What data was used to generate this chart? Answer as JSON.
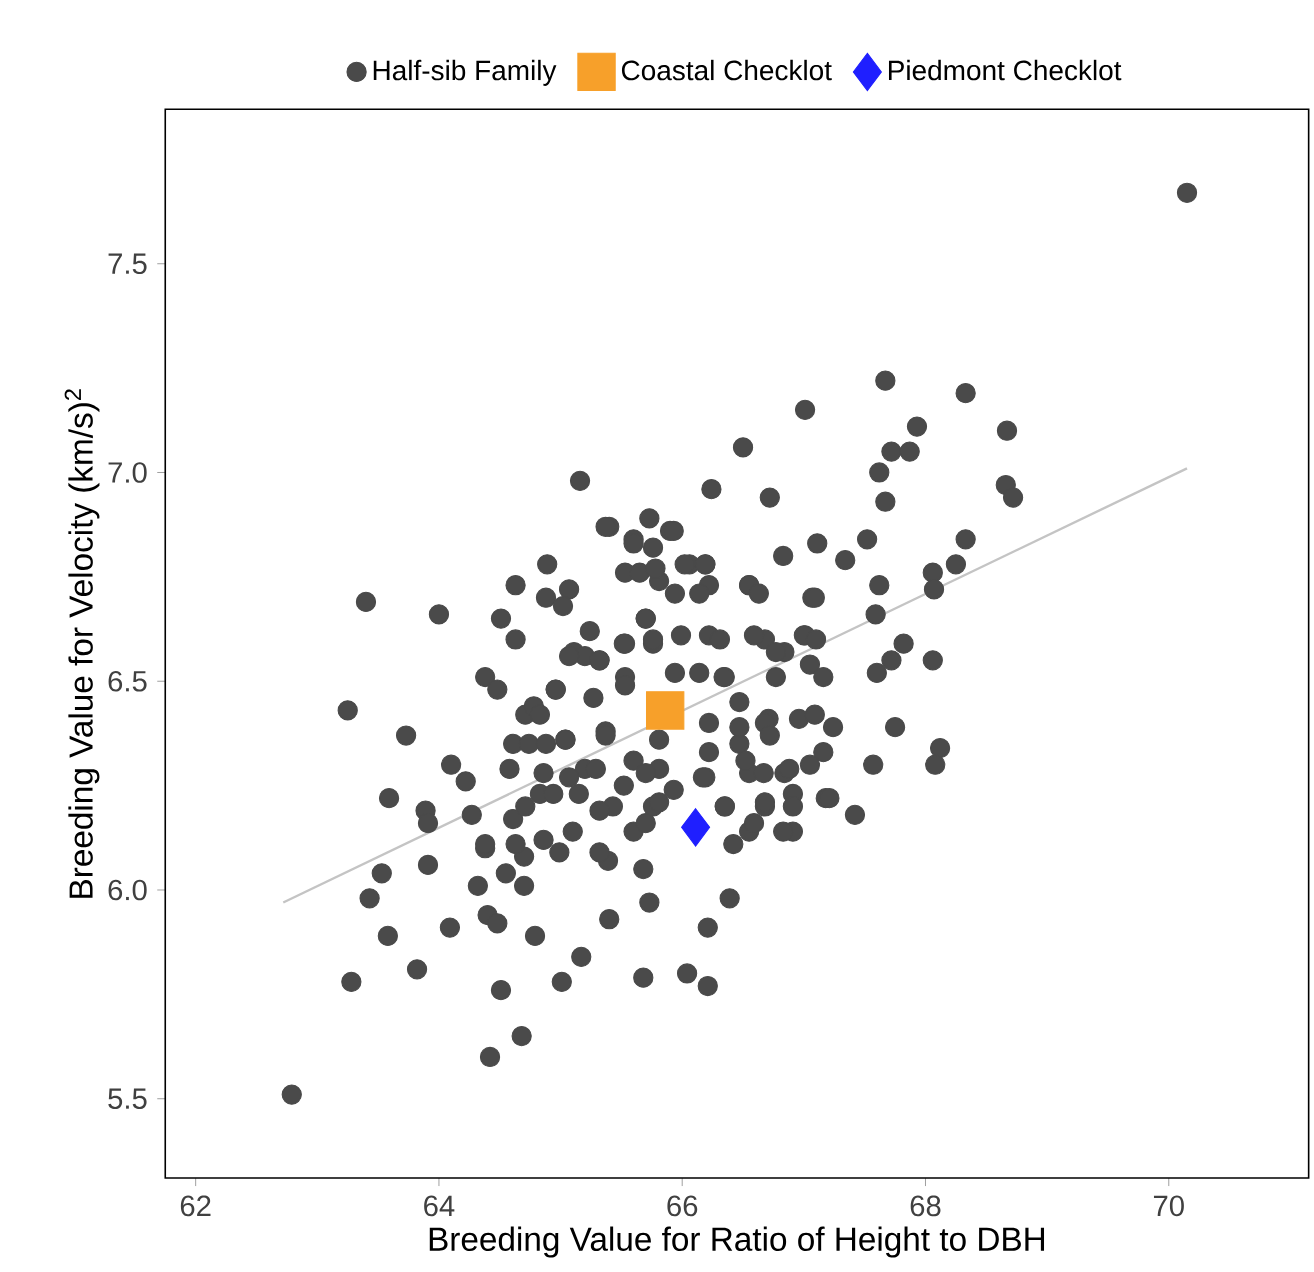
{
  "chart_data": {
    "type": "scatter",
    "xlabel": "Breeding Value for Ratio of Height to DBH",
    "ylabel": "Breeding Value for Velocity  (km/s)$^{2}$",
    "xlim": [
      61.75,
      71.15
    ],
    "ylim": [
      5.31,
      7.87
    ],
    "xticks": [
      62,
      64,
      66,
      68,
      70
    ],
    "yticks": [
      {
        "value": 5.5,
        "label": "5.5"
      },
      {
        "value": 6,
        "label": "6.0"
      },
      {
        "value": 6.5,
        "label": "6.5"
      },
      {
        "value": 7,
        "label": "7.0"
      },
      {
        "value": 7.5,
        "label": "7.5"
      }
    ],
    "legend": "top",
    "grid": false,
    "series": [
      {
        "name": "Half-sib Family",
        "marker": "circle",
        "color": "#4a4a4a",
        "x": [
          70.15,
          65.4,
          65.6,
          65.76,
          65.53,
          65.81,
          66.06,
          66.19,
          65.94,
          66.22,
          66.55,
          65.7,
          65.99,
          66.22,
          65.11,
          65.32,
          65.53,
          65.76,
          65.94,
          66.14,
          66.35,
          66.68,
          66.84,
          67.01,
          64.96,
          65.27,
          65.53,
          66.47,
          66.71,
          66.96,
          64.71,
          65.04,
          65.37,
          65.81,
          66.22,
          66.47,
          65.2,
          65.6,
          65.81,
          66.19,
          66.55,
          66.84,
          64.83,
          65.43,
          65.76,
          66.35,
          66.68,
          64.61,
          65.6,
          66.55,
          66.91,
          67.18,
          67.07,
          62.79,
          63.28,
          63.58,
          63.43,
          63.53,
          63.91,
          63.82,
          64.09,
          64.32,
          64.4,
          64.48,
          64.51,
          64.42,
          64.68,
          64.55,
          64.7,
          64.7,
          64.79,
          65.01,
          65.17,
          65.4,
          65.39,
          65.68,
          65.68,
          65.73,
          66.04,
          66.21,
          66.21,
          66.39,
          64.38,
          63.4,
          64.0,
          64.51,
          64.63,
          64.63,
          64.89,
          64.88,
          65.07,
          65.02,
          64.38,
          64.48,
          63.25,
          63.73,
          64.1,
          64.22,
          63.59,
          63.89,
          63.91,
          64.27,
          64.78,
          64.83,
          64.96,
          64.61,
          64.74,
          64.88,
          65.04,
          64.58,
          64.86,
          65.07,
          65.29,
          65.37,
          65.2,
          65.07,
          65.32,
          65.24,
          65.52,
          65.37,
          65.6,
          65.73,
          65.9,
          65.65,
          65.78,
          65.7,
          65.76,
          65.53,
          64.94,
          65.15,
          64.71,
          64.38,
          64.63,
          64.86,
          65.1,
          65.32,
          65.52,
          65.7,
          65.81,
          65.7,
          65.32,
          64.99,
          65.93,
          66.83,
          67.11,
          67.34,
          67.52,
          68.33,
          68.06,
          68.25,
          67.62,
          68.07,
          67.09,
          66.55,
          66.63,
          66.19,
          66.02,
          66.14,
          67.59,
          66.59,
          66.77,
          67.0,
          67.1,
          67.05,
          67.16,
          66.77,
          66.31,
          66.34,
          67.82,
          67.72,
          67.6,
          68.06,
          67.75,
          67.09,
          67.24,
          67.16,
          67.05,
          66.68,
          66.72,
          66.47,
          66.22,
          66.52,
          66.67,
          66.88,
          66.91,
          67.57,
          68.12,
          68.08,
          67.21,
          66.91,
          67.42,
          66.68,
          66.59,
          66.83,
          66.35,
          66.17,
          65.93,
          66.42,
          67.67,
          68.33,
          67.01,
          67.93,
          68.67,
          66.5,
          67.72,
          67.87,
          67.62,
          66.72,
          67.67,
          68.66,
          68.72,
          65.16,
          66.24
        ],
        "values": [
          7.67,
          6.87,
          6.84,
          6.82,
          6.76,
          6.74,
          6.78,
          6.78,
          6.71,
          6.73,
          6.73,
          6.65,
          6.61,
          6.61,
          6.57,
          6.55,
          6.59,
          6.59,
          6.52,
          6.52,
          6.51,
          6.6,
          6.57,
          6.61,
          6.48,
          6.46,
          6.51,
          6.45,
          6.41,
          6.41,
          6.42,
          6.36,
          6.38,
          6.36,
          6.4,
          6.35,
          6.29,
          6.31,
          6.29,
          6.27,
          6.28,
          6.28,
          6.23,
          6.2,
          6.2,
          6.2,
          6.2,
          6.17,
          6.14,
          6.14,
          6.14,
          6.22,
          6.7,
          5.51,
          5.78,
          5.89,
          5.98,
          6.04,
          6.06,
          5.81,
          5.91,
          6.01,
          5.94,
          5.92,
          5.76,
          5.6,
          5.65,
          6.04,
          6.01,
          6.08,
          5.89,
          5.78,
          5.84,
          5.93,
          6.07,
          5.79,
          6.05,
          5.97,
          5.8,
          5.77,
          5.91,
          5.98,
          6.1,
          6.69,
          6.66,
          6.65,
          6.6,
          6.73,
          6.78,
          6.7,
          6.72,
          6.68,
          6.51,
          6.48,
          6.43,
          6.37,
          6.3,
          6.26,
          6.22,
          6.19,
          6.16,
          6.18,
          6.44,
          6.42,
          6.48,
          6.35,
          6.35,
          6.35,
          6.36,
          6.29,
          6.28,
          6.27,
          6.29,
          6.37,
          6.56,
          6.56,
          6.55,
          6.62,
          6.59,
          6.87,
          6.83,
          6.89,
          6.86,
          6.76,
          6.77,
          6.65,
          6.6,
          6.49,
          6.23,
          6.23,
          6.2,
          6.11,
          6.11,
          6.12,
          6.14,
          6.19,
          6.25,
          6.28,
          6.21,
          6.16,
          6.09,
          6.09,
          6.86,
          6.8,
          6.83,
          6.79,
          6.84,
          6.84,
          6.76,
          6.78,
          6.73,
          6.72,
          6.7,
          6.73,
          6.71,
          6.78,
          6.78,
          6.71,
          6.66,
          6.61,
          6.57,
          6.61,
          6.6,
          6.54,
          6.51,
          6.51,
          6.6,
          6.51,
          6.59,
          6.55,
          6.52,
          6.55,
          6.39,
          6.42,
          6.39,
          6.33,
          6.3,
          6.4,
          6.37,
          6.39,
          6.33,
          6.31,
          6.28,
          6.29,
          6.23,
          6.3,
          6.34,
          6.3,
          6.22,
          6.2,
          6.18,
          6.21,
          6.16,
          6.14,
          6.2,
          6.27,
          6.24,
          6.11,
          7.22,
          7.19,
          7.15,
          7.11,
          7.1,
          7.06,
          7.05,
          7.05,
          7.0,
          6.94,
          6.93,
          6.97,
          6.94,
          6.98,
          6.96
        ]
      },
      {
        "name": "Coastal Checklot",
        "marker": "square",
        "color": "#f7a02a",
        "x": [
          65.86
        ],
        "values": [
          6.43
        ]
      },
      {
        "name": "Piedmont Checklot",
        "marker": "diamond",
        "color": "#1f1fff",
        "x": [
          66.11
        ],
        "values": [
          6.15
        ]
      },
      {
        "type": "line",
        "marker": "none",
        "line_style": "solid",
        "color": "#c4c4c4",
        "x": [
          62.72,
          70.15
        ],
        "values": [
          5.97,
          7.01
        ]
      }
    ]
  }
}
